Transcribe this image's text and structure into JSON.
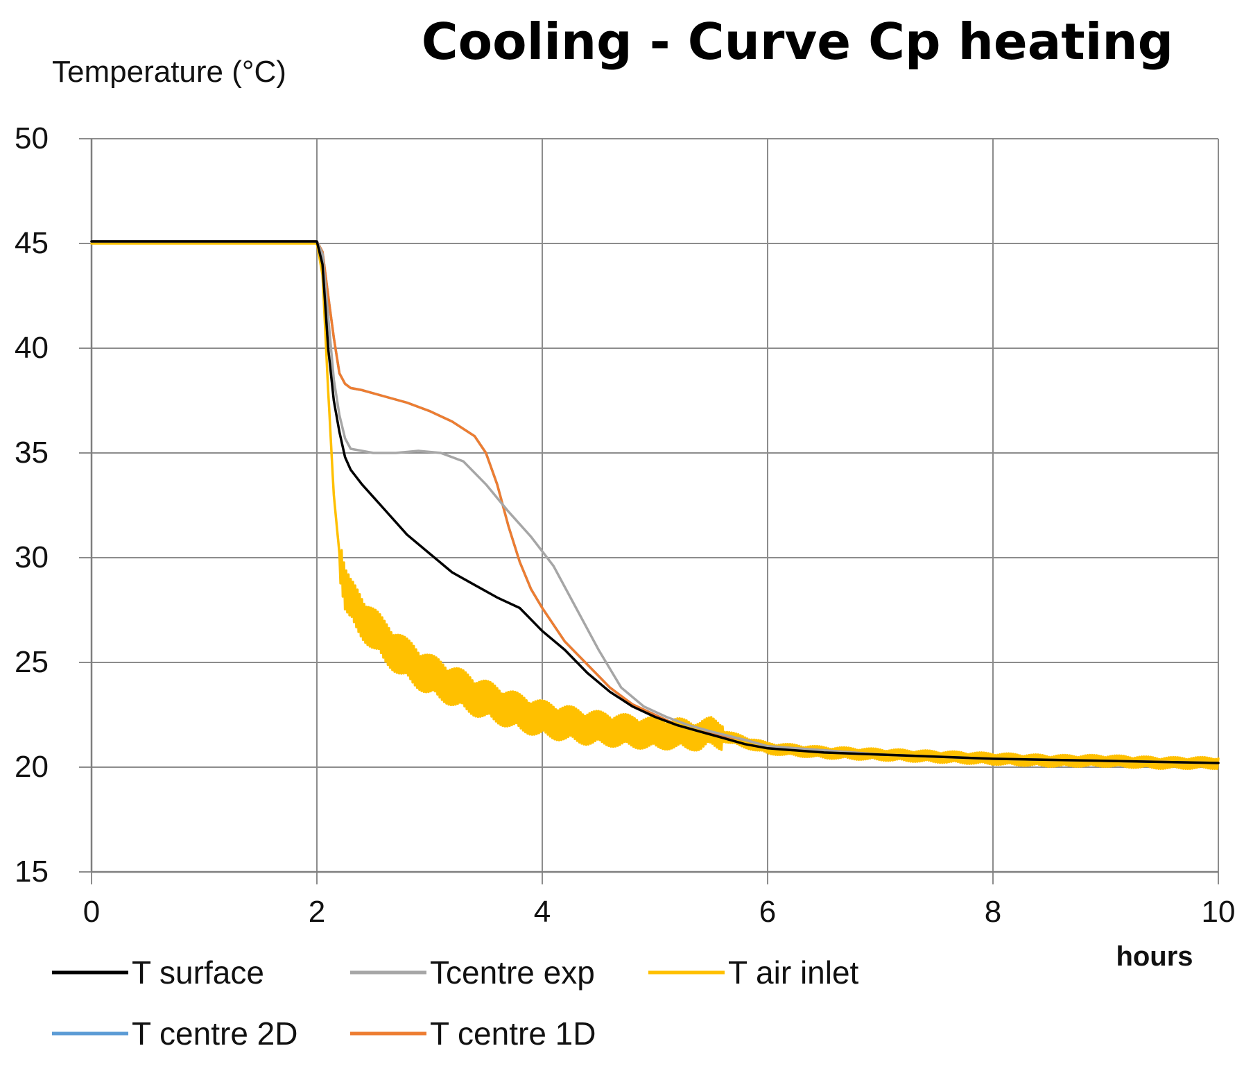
{
  "chart_data": {
    "type": "line",
    "title": "Cooling - Curve Cp heating",
    "ylabel": "Temperature  (°C)",
    "xlabel": "hours",
    "xlim": [
      0,
      10
    ],
    "ylim": [
      15,
      50
    ],
    "xticks": [
      0,
      2,
      4,
      6,
      8,
      10
    ],
    "yticks": [
      15,
      20,
      25,
      30,
      35,
      40,
      45,
      50
    ],
    "grid": true,
    "legend_position": "bottom",
    "series": [
      {
        "name": "T surface",
        "color": "#000000",
        "x": [
          0,
          2.0,
          2.05,
          2.1,
          2.15,
          2.2,
          2.25,
          2.3,
          2.4,
          2.5,
          2.6,
          2.8,
          3.0,
          3.2,
          3.4,
          3.6,
          3.8,
          4.0,
          4.2,
          4.4,
          4.6,
          4.8,
          5.0,
          5.2,
          5.4,
          5.6,
          5.8,
          6.0,
          6.5,
          7.0,
          8.0,
          9.0,
          10.0
        ],
        "values": [
          45.1,
          45.1,
          44.0,
          40.0,
          37.5,
          36.0,
          34.8,
          34.2,
          33.5,
          32.9,
          32.3,
          31.1,
          30.2,
          29.3,
          28.7,
          28.1,
          27.6,
          26.5,
          25.6,
          24.5,
          23.6,
          22.9,
          22.4,
          22.0,
          21.7,
          21.4,
          21.1,
          20.9,
          20.7,
          20.6,
          20.4,
          20.3,
          20.2
        ]
      },
      {
        "name": "Tcentre exp",
        "color": "#a6a6a6",
        "x": [
          0,
          2.0,
          2.05,
          2.1,
          2.15,
          2.2,
          2.25,
          2.3,
          2.4,
          2.5,
          2.7,
          2.9,
          3.1,
          3.3,
          3.5,
          3.7,
          3.9,
          4.1,
          4.3,
          4.5,
          4.7,
          4.9,
          5.1,
          5.3,
          5.5,
          5.8,
          6.0,
          6.5,
          7.0,
          8.0,
          9.0,
          10.0
        ],
        "values": [
          45.1,
          45.1,
          44.5,
          41.5,
          38.5,
          36.8,
          35.7,
          35.2,
          35.1,
          35.0,
          35.0,
          35.1,
          35.0,
          34.6,
          33.5,
          32.2,
          31.0,
          29.6,
          27.6,
          25.6,
          23.8,
          22.9,
          22.4,
          22.0,
          21.7,
          21.3,
          21.0,
          20.8,
          20.6,
          20.4,
          20.3,
          20.2
        ]
      },
      {
        "name": "T air inlet",
        "color": "#ffc000",
        "x": [
          0,
          2.0,
          2.05,
          2.1,
          2.15,
          2.2,
          2.25,
          2.3,
          2.4,
          2.6,
          2.8,
          3.0,
          3.2,
          3.4,
          3.6,
          3.8,
          4.0,
          4.2,
          4.4,
          4.6,
          4.8,
          5.0,
          5.2,
          5.4,
          5.5,
          5.6,
          5.8,
          6.0,
          6.5,
          7.0,
          7.5,
          8.0,
          8.5,
          9.0,
          9.5,
          10.0
        ],
        "values": [
          45.0,
          45.0,
          43.5,
          38.0,
          33.0,
          30.2,
          28.5,
          27.9,
          27.2,
          26.0,
          25.1,
          24.4,
          23.9,
          23.4,
          23.0,
          22.6,
          22.3,
          22.1,
          21.9,
          21.8,
          21.7,
          21.6,
          21.6,
          21.5,
          21.7,
          21.5,
          21.2,
          20.9,
          20.7,
          20.6,
          20.5,
          20.4,
          20.3,
          20.3,
          20.2,
          20.2
        ]
      },
      {
        "name": "T centre 2D",
        "color": "#5b9bd5",
        "x": [
          0,
          2.0,
          2.05,
          2.1,
          2.15,
          2.2,
          2.25,
          2.3,
          2.4,
          2.6,
          2.8,
          3.0,
          3.2,
          3.4,
          3.5,
          3.6,
          3.7,
          3.8,
          3.9,
          4.0,
          4.2,
          4.4,
          4.6,
          4.8,
          5.0,
          5.2,
          5.4,
          5.6,
          5.8,
          6.0,
          6.5,
          7.0,
          8.0,
          9.0,
          10.0
        ],
        "values": [
          45.1,
          45.1,
          44.6,
          42.5,
          40.5,
          38.8,
          38.3,
          38.1,
          38.0,
          37.7,
          37.4,
          37.0,
          36.5,
          35.8,
          35.0,
          33.5,
          31.5,
          29.8,
          28.5,
          27.6,
          26.0,
          24.9,
          23.8,
          23.0,
          22.5,
          22.0,
          21.7,
          21.5,
          21.3,
          21.0,
          20.8,
          20.6,
          20.4,
          20.3,
          20.2
        ]
      },
      {
        "name": "T centre 1D",
        "color": "#ed7d31",
        "x": [
          0,
          2.0,
          2.05,
          2.1,
          2.15,
          2.2,
          2.25,
          2.3,
          2.4,
          2.6,
          2.8,
          3.0,
          3.2,
          3.4,
          3.5,
          3.6,
          3.7,
          3.8,
          3.9,
          4.0,
          4.2,
          4.4,
          4.6,
          4.8,
          5.0,
          5.2,
          5.4,
          5.6,
          5.8,
          6.0,
          6.5,
          7.0,
          8.0,
          9.0,
          10.0
        ],
        "values": [
          45.1,
          45.1,
          44.6,
          42.5,
          40.5,
          38.8,
          38.3,
          38.1,
          38.0,
          37.7,
          37.4,
          37.0,
          36.5,
          35.8,
          35.0,
          33.5,
          31.5,
          29.8,
          28.5,
          27.6,
          26.0,
          24.9,
          23.8,
          23.0,
          22.5,
          22.0,
          21.7,
          21.5,
          21.3,
          21.0,
          20.8,
          20.6,
          20.4,
          20.3,
          20.2
        ]
      }
    ]
  }
}
